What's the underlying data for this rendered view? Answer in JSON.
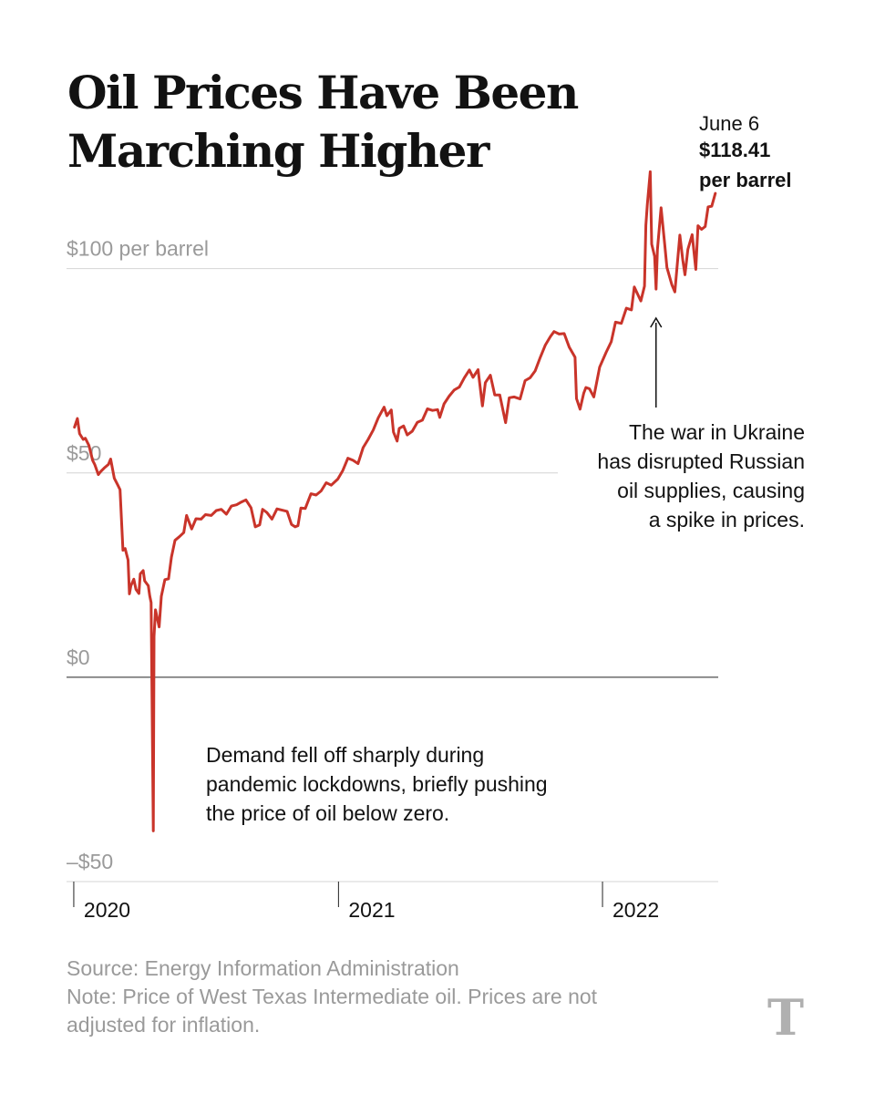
{
  "title": "Oil Prices Have Been Marching Higher",
  "footer": {
    "source": "Source: Energy Information Administration",
    "note": "Note: Price of West Texas Intermediate oil. Prices are not adjusted for inflation."
  },
  "logo": {
    "text": "T",
    "icon": "nyt-logo"
  },
  "chart_data": {
    "type": "line",
    "title": "Oil Prices Have Been Marching Higher",
    "xlabel": "",
    "ylabel": "",
    "x_ticks": [
      "2020",
      "2021",
      "2022"
    ],
    "y_ticks": [
      {
        "value": 100,
        "label": "$100 per barrel"
      },
      {
        "value": 50,
        "label": "$50"
      },
      {
        "value": 0,
        "label": "$0"
      },
      {
        "value": -50,
        "label": "–$50"
      }
    ],
    "ylim": [
      -50,
      120
    ],
    "xlim": [
      "2019-12-22",
      "2022-06-10"
    ],
    "grid": true,
    "line_color": "#c9342a",
    "series": [
      {
        "points": [
          [
            "2020-01-02",
            61.2
          ],
          [
            "2020-01-06",
            63.3
          ],
          [
            "2020-01-09",
            59.6
          ],
          [
            "2020-01-14",
            58.2
          ],
          [
            "2020-01-17",
            58.5
          ],
          [
            "2020-01-22",
            56.7
          ],
          [
            "2020-01-27",
            53.1
          ],
          [
            "2020-01-30",
            52.1
          ],
          [
            "2020-02-04",
            49.6
          ],
          [
            "2020-02-07",
            50.3
          ],
          [
            "2020-02-12",
            51.2
          ],
          [
            "2020-02-18",
            52.1
          ],
          [
            "2020-02-21",
            53.4
          ],
          [
            "2020-02-26",
            48.7
          ],
          [
            "2020-03-02",
            47.0
          ],
          [
            "2020-03-05",
            45.9
          ],
          [
            "2020-03-09",
            31.1
          ],
          [
            "2020-03-12",
            31.5
          ],
          [
            "2020-03-16",
            28.7
          ],
          [
            "2020-03-18",
            20.4
          ],
          [
            "2020-03-20",
            22.4
          ],
          [
            "2020-03-24",
            24.0
          ],
          [
            "2020-03-27",
            21.5
          ],
          [
            "2020-03-31",
            20.5
          ],
          [
            "2020-04-02",
            25.3
          ],
          [
            "2020-04-06",
            26.1
          ],
          [
            "2020-04-08",
            23.6
          ],
          [
            "2020-04-13",
            22.4
          ],
          [
            "2020-04-15",
            19.9
          ],
          [
            "2020-04-17",
            18.3
          ],
          [
            "2020-04-20",
            -37.6
          ],
          [
            "2020-04-21",
            10.0
          ],
          [
            "2020-04-23",
            16.5
          ],
          [
            "2020-04-28",
            12.3
          ],
          [
            "2020-05-01",
            19.8
          ],
          [
            "2020-05-06",
            23.9
          ],
          [
            "2020-05-11",
            24.1
          ],
          [
            "2020-05-15",
            29.4
          ],
          [
            "2020-05-20",
            33.5
          ],
          [
            "2020-05-26",
            34.4
          ],
          [
            "2020-06-01",
            35.4
          ],
          [
            "2020-06-05",
            39.6
          ],
          [
            "2020-06-12",
            36.3
          ],
          [
            "2020-06-18",
            38.8
          ],
          [
            "2020-06-25",
            38.7
          ],
          [
            "2020-07-01",
            39.8
          ],
          [
            "2020-07-09",
            39.6
          ],
          [
            "2020-07-16",
            40.8
          ],
          [
            "2020-07-23",
            41.1
          ],
          [
            "2020-07-30",
            39.9
          ],
          [
            "2020-08-06",
            41.9
          ],
          [
            "2020-08-13",
            42.2
          ],
          [
            "2020-08-20",
            42.9
          ],
          [
            "2020-08-26",
            43.4
          ],
          [
            "2020-09-02",
            41.5
          ],
          [
            "2020-09-08",
            36.8
          ],
          [
            "2020-09-14",
            37.3
          ],
          [
            "2020-09-18",
            41.1
          ],
          [
            "2020-09-24",
            40.3
          ],
          [
            "2020-10-01",
            38.7
          ],
          [
            "2020-10-08",
            41.2
          ],
          [
            "2020-10-15",
            40.9
          ],
          [
            "2020-10-22",
            40.6
          ],
          [
            "2020-10-28",
            37.4
          ],
          [
            "2020-11-02",
            36.8
          ],
          [
            "2020-11-06",
            37.1
          ],
          [
            "2020-11-10",
            41.4
          ],
          [
            "2020-11-16",
            41.3
          ],
          [
            "2020-11-24",
            44.9
          ],
          [
            "2020-12-01",
            44.6
          ],
          [
            "2020-12-08",
            45.6
          ],
          [
            "2020-12-15",
            47.6
          ],
          [
            "2020-12-22",
            47.0
          ],
          [
            "2020-12-31",
            48.5
          ],
          [
            "2021-01-07",
            50.6
          ],
          [
            "2021-01-14",
            53.6
          ],
          [
            "2021-01-21",
            53.1
          ],
          [
            "2021-01-28",
            52.3
          ],
          [
            "2021-02-04",
            56.2
          ],
          [
            "2021-02-11",
            58.2
          ],
          [
            "2021-02-18",
            60.5
          ],
          [
            "2021-02-25",
            63.5
          ],
          [
            "2021-03-05",
            66.1
          ],
          [
            "2021-03-09",
            64.0
          ],
          [
            "2021-03-15",
            65.4
          ],
          [
            "2021-03-18",
            60.0
          ],
          [
            "2021-03-23",
            57.8
          ],
          [
            "2021-03-26",
            60.9
          ],
          [
            "2021-04-01",
            61.5
          ],
          [
            "2021-04-06",
            59.3
          ],
          [
            "2021-04-13",
            60.2
          ],
          [
            "2021-04-20",
            62.4
          ],
          [
            "2021-04-27",
            62.9
          ],
          [
            "2021-05-04",
            65.7
          ],
          [
            "2021-05-11",
            65.3
          ],
          [
            "2021-05-18",
            65.5
          ],
          [
            "2021-05-21",
            63.6
          ],
          [
            "2021-05-27",
            66.9
          ],
          [
            "2021-06-03",
            68.8
          ],
          [
            "2021-06-10",
            70.3
          ],
          [
            "2021-06-17",
            71.0
          ],
          [
            "2021-06-24",
            73.3
          ],
          [
            "2021-07-01",
            75.2
          ],
          [
            "2021-07-06",
            73.4
          ],
          [
            "2021-07-13",
            75.3
          ],
          [
            "2021-07-19",
            66.4
          ],
          [
            "2021-07-23",
            72.1
          ],
          [
            "2021-07-30",
            73.9
          ],
          [
            "2021-08-05",
            69.1
          ],
          [
            "2021-08-12",
            69.1
          ],
          [
            "2021-08-20",
            62.3
          ],
          [
            "2021-08-25",
            68.4
          ],
          [
            "2021-09-01",
            68.6
          ],
          [
            "2021-09-09",
            68.1
          ],
          [
            "2021-09-16",
            72.6
          ],
          [
            "2021-09-23",
            73.3
          ],
          [
            "2021-09-30",
            75.0
          ],
          [
            "2021-10-07",
            78.3
          ],
          [
            "2021-10-14",
            81.3
          ],
          [
            "2021-10-21",
            83.4
          ],
          [
            "2021-10-26",
            84.6
          ],
          [
            "2021-11-02",
            84.0
          ],
          [
            "2021-11-09",
            84.1
          ],
          [
            "2021-11-16",
            80.8
          ],
          [
            "2021-11-24",
            78.3
          ],
          [
            "2021-11-26",
            68.2
          ],
          [
            "2021-12-01",
            65.6
          ],
          [
            "2021-12-06",
            69.5
          ],
          [
            "2021-12-09",
            70.9
          ],
          [
            "2021-12-14",
            70.6
          ],
          [
            "2021-12-20",
            68.6
          ],
          [
            "2021-12-28",
            75.9
          ],
          [
            "2022-01-06",
            79.5
          ],
          [
            "2022-01-13",
            82.1
          ],
          [
            "2022-01-19",
            86.9
          ],
          [
            "2022-01-27",
            86.6
          ],
          [
            "2022-02-03",
            90.3
          ],
          [
            "2022-02-10",
            89.9
          ],
          [
            "2022-02-14",
            95.5
          ],
          [
            "2022-02-23",
            92.1
          ],
          [
            "2022-02-28",
            95.7
          ],
          [
            "2022-03-02",
            110.6
          ],
          [
            "2022-03-04",
            115.7
          ],
          [
            "2022-03-08",
            123.7
          ],
          [
            "2022-03-10",
            106.0
          ],
          [
            "2022-03-14",
            103.0
          ],
          [
            "2022-03-16",
            95.0
          ],
          [
            "2022-03-18",
            104.7
          ],
          [
            "2022-03-23",
            114.9
          ],
          [
            "2022-03-28",
            105.9
          ],
          [
            "2022-03-31",
            100.3
          ],
          [
            "2022-04-07",
            96.0
          ],
          [
            "2022-04-11",
            94.3
          ],
          [
            "2022-04-18",
            108.2
          ],
          [
            "2022-04-22",
            102.1
          ],
          [
            "2022-04-25",
            98.5
          ],
          [
            "2022-04-29",
            104.7
          ],
          [
            "2022-05-05",
            108.3
          ],
          [
            "2022-05-10",
            99.8
          ],
          [
            "2022-05-13",
            110.5
          ],
          [
            "2022-05-18",
            109.6
          ],
          [
            "2022-05-23",
            110.3
          ],
          [
            "2022-05-27",
            115.1
          ],
          [
            "2022-06-01",
            115.3
          ],
          [
            "2022-06-06",
            118.41
          ]
        ]
      }
    ],
    "annotations": {
      "end_label": {
        "date": "June 6",
        "price": "$118.41",
        "unit": "per barrel"
      },
      "ukraine": {
        "lines": [
          "The war in Ukraine",
          "has disrupted Russian",
          "oil supplies, causing",
          "a spike in prices."
        ],
        "target_date": "2022-03-16",
        "target_value": 95.0
      },
      "pandemic": {
        "lines": [
          "Demand fell off sharply during",
          "pandemic lockdowns, briefly pushing",
          "the price of oil below zero."
        ]
      }
    }
  }
}
